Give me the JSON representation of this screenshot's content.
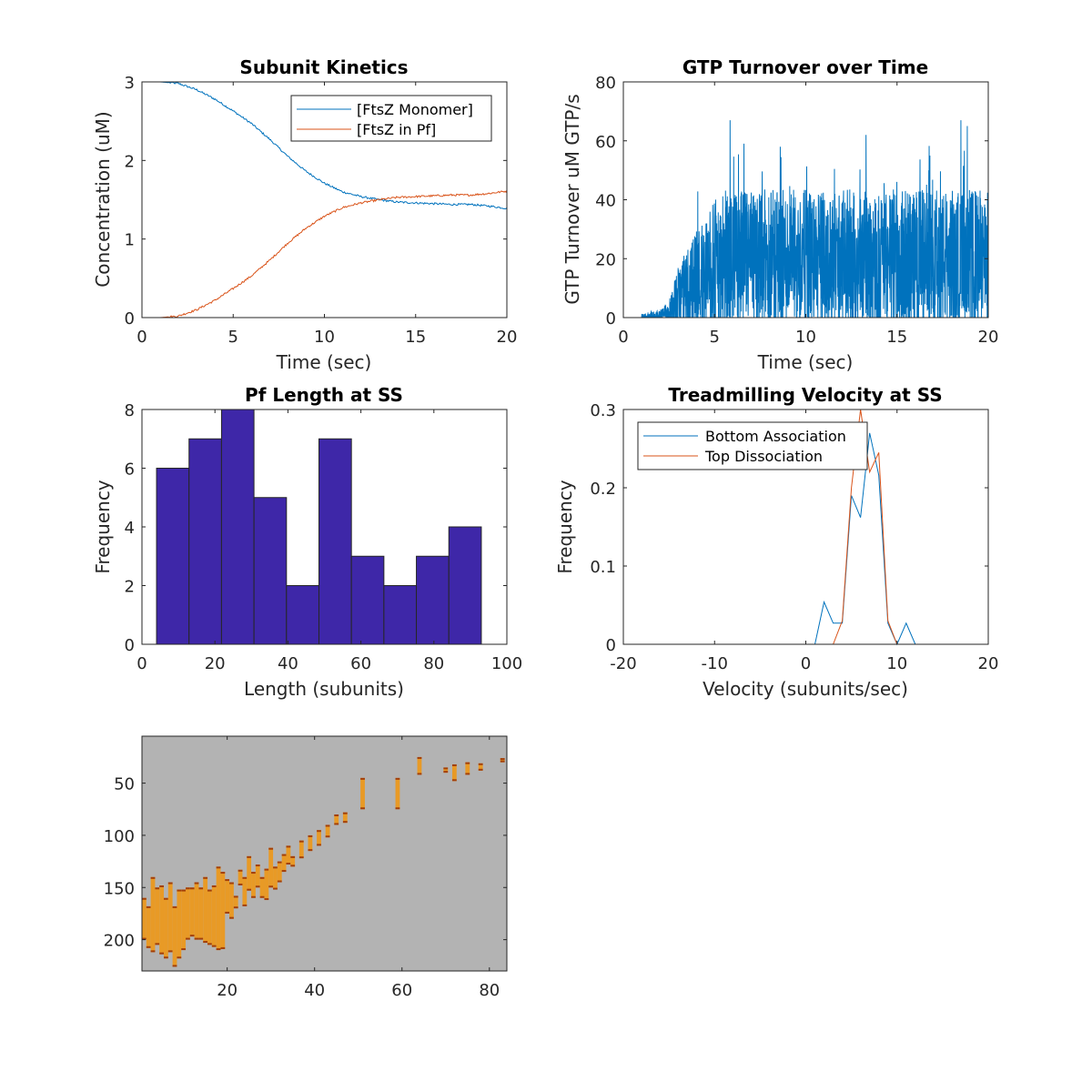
{
  "colors": {
    "blue": "#0072bd",
    "orange": "#d95319",
    "bar": "#3e27a8",
    "heat_bg": "#b3b3b3",
    "heat_fill": "#e89a26",
    "heat_dark": "#a23f0b"
  },
  "chart_data": [
    {
      "id": "kinetics",
      "type": "line",
      "title": "Subunit Kinetics",
      "xlabel": "Time (sec)",
      "ylabel": "Concentration (uM)",
      "xlim": [
        0,
        20
      ],
      "ylim": [
        0,
        3
      ],
      "xticks": [
        0,
        5,
        10,
        15,
        20
      ],
      "yticks": [
        0,
        1,
        2,
        3
      ],
      "legend_position": "top-right",
      "series": [
        {
          "name": "[FtsZ Monomer]",
          "color": "blue",
          "x": [
            0,
            1,
            2,
            3,
            4,
            5,
            6,
            7,
            8,
            9,
            10,
            11,
            12,
            13,
            14,
            15,
            16,
            17,
            18,
            19,
            20
          ],
          "y": [
            3.0,
            3.0,
            2.98,
            2.9,
            2.78,
            2.63,
            2.47,
            2.27,
            2.05,
            1.86,
            1.71,
            1.6,
            1.54,
            1.5,
            1.47,
            1.46,
            1.45,
            1.44,
            1.44,
            1.42,
            1.39
          ]
        },
        {
          "name": "[FtsZ in Pf]",
          "color": "orange",
          "x": [
            0,
            1,
            2,
            3,
            4,
            5,
            6,
            7,
            8,
            9,
            10,
            11,
            12,
            13,
            14,
            15,
            16,
            17,
            18,
            19,
            20
          ],
          "y": [
            0.0,
            0.0,
            0.02,
            0.1,
            0.22,
            0.37,
            0.53,
            0.73,
            0.95,
            1.14,
            1.29,
            1.4,
            1.46,
            1.5,
            1.53,
            1.54,
            1.55,
            1.56,
            1.56,
            1.58,
            1.61
          ]
        }
      ]
    },
    {
      "id": "gtp",
      "type": "line",
      "title": "GTP Turnover over Time",
      "xlabel": "Time (sec)",
      "ylabel": "GTP Turnover uM GTP/s",
      "xlim": [
        0,
        20
      ],
      "ylim": [
        0,
        80
      ],
      "xticks": [
        0,
        5,
        10,
        15,
        20
      ],
      "yticks": [
        0,
        20,
        40,
        60,
        80
      ],
      "series": [
        {
          "color": "blue",
          "x": [
            0,
            1,
            2,
            2.5,
            3,
            3.5,
            4,
            4.5,
            5,
            5.5,
            6,
            7,
            8,
            9,
            10,
            11,
            12,
            13,
            14,
            15,
            16,
            17,
            18,
            19,
            20
          ],
          "y": [
            0,
            0,
            0.5,
            2,
            7,
            10,
            13,
            15,
            17,
            18,
            19,
            20,
            20,
            20,
            20,
            20,
            20,
            20,
            20,
            20,
            20,
            20,
            20,
            20,
            20
          ],
          "peaks": [
            [
              5.85,
              67
            ],
            [
              13.3,
              62
            ],
            [
              18.5,
              67
            ],
            [
              18.85,
              65
            ],
            [
              8.6,
              58
            ],
            [
              16.8,
              55
            ]
          ]
        }
      ]
    },
    {
      "id": "pflength",
      "type": "bar",
      "title": "Pf Length at SS",
      "xlabel": "Length (subunits)",
      "ylabel": "Frequency",
      "xlim": [
        0,
        100
      ],
      "ylim": [
        0,
        8
      ],
      "xticks": [
        0,
        20,
        40,
        60,
        80,
        100
      ],
      "yticks": [
        0,
        2,
        4,
        6,
        8
      ],
      "bin_edges": [
        4,
        12.9,
        21.8,
        30.7,
        39.6,
        48.5,
        57.4,
        66.3,
        75.2,
        84.1,
        93
      ],
      "values": [
        6,
        7,
        8,
        5,
        2,
        7,
        3,
        2,
        3,
        4
      ]
    },
    {
      "id": "velocity",
      "type": "line",
      "title": "Treadmilling Velocity at SS",
      "xlabel": "Velocity (subunits/sec)",
      "ylabel": "Frequency",
      "xlim": [
        -20,
        20
      ],
      "ylim": [
        0,
        0.3
      ],
      "xticks": [
        -20,
        -10,
        0,
        10,
        20
      ],
      "yticks": [
        0,
        0.1,
        0.2,
        0.3
      ],
      "legend_position": "top-left",
      "series": [
        {
          "name": "Bottom Association",
          "color": "blue",
          "x": [
            -15,
            -14,
            -13,
            -12,
            -11,
            -10,
            -9,
            -8,
            -7,
            -6,
            -5,
            -4,
            -3,
            -2,
            -1,
            0,
            1,
            2,
            3,
            4,
            5,
            6,
            7,
            8,
            9,
            10,
            11,
            12,
            13,
            14
          ],
          "y": [
            0,
            0,
            0,
            0,
            0,
            0,
            0,
            0,
            0,
            0,
            0,
            0,
            0,
            0,
            0,
            0,
            0,
            0.054,
            0.027,
            0.027,
            0.19,
            0.162,
            0.27,
            0.216,
            0.027,
            0,
            0.027,
            0,
            0,
            0
          ]
        },
        {
          "name": "Top Dissociation",
          "color": "orange",
          "x": [
            -15,
            -14,
            -13,
            -12,
            -11,
            -10,
            -9,
            -8,
            -7,
            -6,
            -5,
            -4,
            -3,
            -2,
            -1,
            0,
            1,
            2,
            3,
            4,
            5,
            6,
            7,
            8,
            9,
            10,
            11,
            12,
            13,
            14
          ],
          "y": [
            0,
            0,
            0,
            0,
            0,
            0,
            0,
            0,
            0,
            0,
            0,
            0,
            0,
            0,
            0,
            0,
            0,
            0,
            0,
            0.03,
            0.2,
            0.3,
            0.22,
            0.245,
            0.03,
            0,
            0,
            0,
            0,
            0
          ]
        }
      ]
    },
    {
      "id": "heatmap",
      "type": "heatmap",
      "title": "",
      "xlim": [
        0.5,
        84
      ],
      "ylim": [
        5,
        230
      ],
      "xticks": [
        20,
        40,
        60,
        80
      ],
      "yticks": [
        50,
        100,
        150,
        200
      ],
      "y_reversed": true,
      "columns": [
        [
          1,
          160,
          200
        ],
        [
          2,
          168,
          208
        ],
        [
          3,
          140,
          212
        ],
        [
          4,
          150,
          205
        ],
        [
          5,
          148,
          214
        ],
        [
          6,
          160,
          218
        ],
        [
          7,
          145,
          212
        ],
        [
          8,
          168,
          226
        ],
        [
          9,
          152,
          218
        ],
        [
          10,
          152,
          210
        ],
        [
          11,
          150,
          200
        ],
        [
          12,
          150,
          197
        ],
        [
          13,
          145,
          200
        ],
        [
          14,
          150,
          200
        ],
        [
          15,
          140,
          203
        ],
        [
          16,
          152,
          205
        ],
        [
          17,
          148,
          207
        ],
        [
          18,
          130,
          210
        ],
        [
          19,
          135,
          209
        ],
        [
          20,
          142,
          175
        ],
        [
          21,
          145,
          180
        ],
        [
          22,
          158,
          170
        ],
        [
          23,
          133,
          148
        ],
        [
          24,
          140,
          168
        ],
        [
          25,
          120,
          153
        ],
        [
          26,
          135,
          160
        ],
        [
          27,
          128,
          150
        ],
        [
          28,
          140,
          160
        ],
        [
          29,
          132,
          162
        ],
        [
          30,
          112,
          150
        ],
        [
          31,
          130,
          152
        ],
        [
          32,
          125,
          145
        ],
        [
          33,
          118,
          135
        ],
        [
          34,
          110,
          128
        ],
        [
          35,
          120,
          130
        ],
        [
          37,
          105,
          122
        ],
        [
          39,
          100,
          115
        ],
        [
          41,
          95,
          110
        ],
        [
          43,
          90,
          102
        ],
        [
          45,
          80,
          90
        ],
        [
          47,
          78,
          88
        ],
        [
          51,
          45,
          75
        ],
        [
          59,
          45,
          75
        ],
        [
          64,
          25,
          42
        ],
        [
          70,
          35,
          40
        ],
        [
          72,
          32,
          48
        ],
        [
          75,
          30,
          42
        ],
        [
          78,
          31,
          38
        ],
        [
          83,
          26,
          30
        ]
      ]
    }
  ]
}
